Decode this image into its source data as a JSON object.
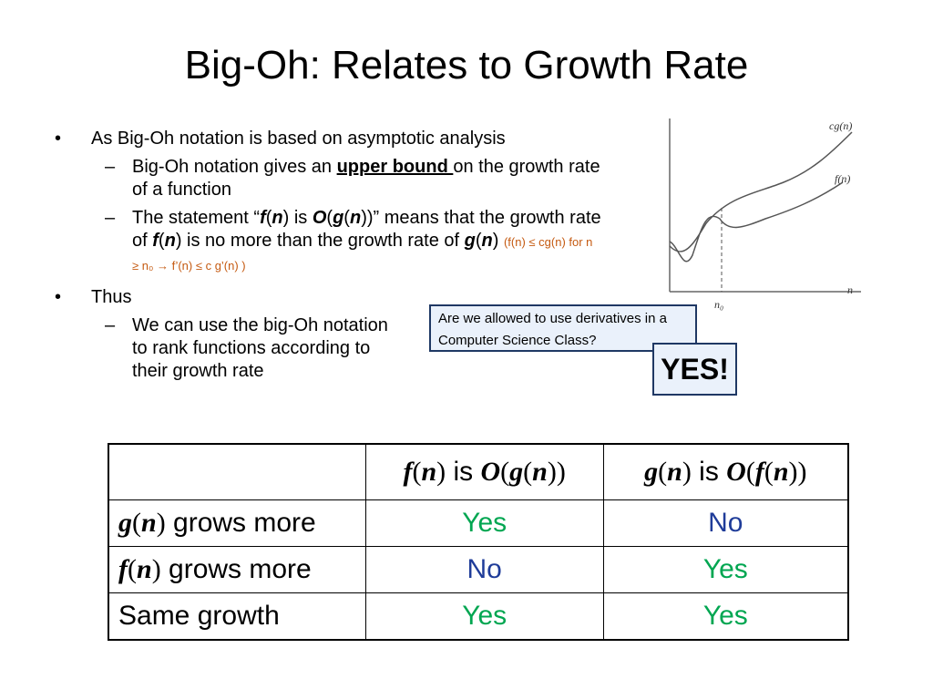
{
  "title": "Big-Oh: Relates to Growth Rate",
  "bullets": {
    "b1": "As Big-Oh notation is based on asymptotic analysis",
    "b1_s1_pre": "Big-Oh notation gives an ",
    "b1_s1_bold": "upper bound ",
    "b1_s1_post": "on the growth rate of a function",
    "b1_s2_a": "The statement “",
    "b1_s2_f": "f",
    "b1_s2_b": "(",
    "b1_s2_n1": "n",
    "b1_s2_c": ") is ",
    "b1_s2_O": "O",
    "b1_s2_d": "(",
    "b1_s2_g": "g",
    "b1_s2_e": "(",
    "b1_s2_n2": "n",
    "b1_s2_f2": "))” means that the growth rate of ",
    "b1_s2_f3": "f",
    "b1_s2_h": "(",
    "b1_s2_n3": "n",
    "b1_s2_i": ") is no more than the growth rate of ",
    "b1_s2_g2": "g",
    "b1_s2_j": "(",
    "b1_s2_n4": "n",
    "b1_s2_k": ") ",
    "b1_s2_small": "(f(n) ≤ cg(n)  for n ≥ n₀ → f’(n) ≤ c g’(n) )",
    "b2": "Thus",
    "b2_s1": "We can use the big-Oh notation to rank functions according to their growth rate"
  },
  "graph": {
    "cg_label": "cg(n)",
    "f_label": "f(n)",
    "x_label": "n",
    "n0_label": "n₀"
  },
  "callout": {
    "text": "Are we allowed to use derivatives in a Computer Science Class?"
  },
  "yes_box": {
    "text": "YES!"
  },
  "table": {
    "header": {
      "c1": "",
      "c2_f": "f",
      "c2_n": "n",
      "c2_is": " is ",
      "c2_O": "O",
      "c2_g": "g",
      "c2_n2": "n",
      "c3_g": "g",
      "c3_n": "n",
      "c3_is": " is ",
      "c3_O": "O",
      "c3_f": "f",
      "c3_n2": "n"
    },
    "rows": [
      {
        "func": "g",
        "var": "n",
        "label": " grows more",
        "col2": "Yes",
        "col3": "No"
      },
      {
        "func": "f",
        "var": "n",
        "label": " grows more",
        "col2": "No",
        "col3": "Yes"
      },
      {
        "label": "Same growth",
        "col2": "Yes",
        "col3": "Yes"
      }
    ]
  }
}
